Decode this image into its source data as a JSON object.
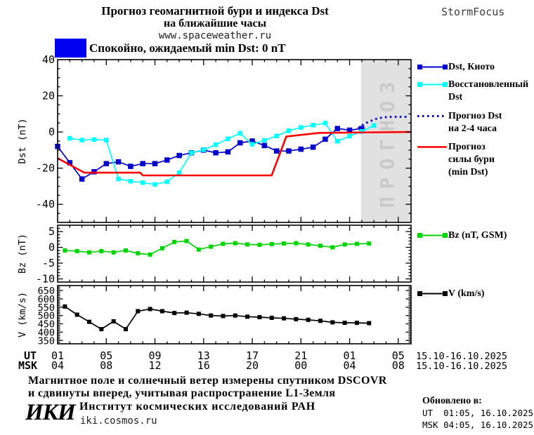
{
  "header": {
    "title_line1": "Прогноз геомагнитной бури и индекса Dst",
    "title_line2": "на ближайшие часы",
    "website": "www.spaceweather.ru",
    "brand": "StormFocus"
  },
  "status": {
    "text": "Спокойно, ожидаемый min Dst: 0 nT",
    "box_color": "#0000f0"
  },
  "chart_data": [
    {
      "type": "line",
      "panel": "dst",
      "ylabel": "Dst (nT)",
      "ylim": [
        -50,
        40
      ],
      "yticks": [
        40,
        20,
        0,
        -20,
        -40
      ],
      "y_minor_step": 5,
      "xlim_hours": [
        0,
        29.05
      ],
      "x_major_step_hours": 4,
      "x_start_ut": "01:00 15.10.2025",
      "forecast_region": {
        "start_hour": 24.94,
        "label": "ПРОГНОЗ",
        "fill": "#e1e1e1",
        "label_color": "#c9c9c9"
      },
      "series": [
        {
          "name": "Dst, Киото",
          "color": "#0000cd",
          "marker": true,
          "msize": 7.5,
          "x": [
            0,
            1,
            2,
            3,
            4,
            5,
            6,
            7,
            8,
            9,
            10,
            11,
            12,
            13,
            14,
            15,
            16,
            17,
            18,
            19,
            20,
            21,
            22,
            23,
            24,
            25
          ],
          "values": [
            -8,
            -17,
            -26,
            -22,
            -17.5,
            -16.5,
            -19,
            -17.5,
            -17.5,
            -15.5,
            -13,
            -11.5,
            -10,
            -11.5,
            -11,
            -6,
            -5,
            -7.5,
            -10.5,
            -10.5,
            -9.5,
            -8.4,
            -4,
            1.9,
            1,
            1.9
          ]
        },
        {
          "name": "Восстановленный Dst",
          "color": "#00ffff",
          "marker": true,
          "msize": 6.5,
          "x": [
            1,
            2,
            3,
            4,
            5,
            6,
            7,
            8,
            9,
            10,
            11,
            12,
            13,
            14,
            15,
            16,
            17,
            18,
            19,
            20,
            21,
            22,
            23,
            24,
            25,
            26
          ],
          "values": [
            -3.5,
            -4.5,
            -4.2,
            -4.5,
            -26,
            -27.2,
            -28,
            -29,
            -27.5,
            -22.5,
            -11.5,
            -9.8,
            -7,
            -3.8,
            -0.7,
            -6.8,
            -4.6,
            -2.2,
            0.7,
            2.5,
            3.8,
            4.9,
            -5.1,
            -2.3,
            0.3,
            3.6
          ]
        },
        {
          "name": "Прогноз Dst на 2-4 часа",
          "color": "#0000cd",
          "marker": false,
          "dotted": true,
          "width": 3,
          "x": [
            24.7,
            25.2,
            25.7,
            26.2,
            26.7,
            27.2,
            27.7,
            28.2,
            28.7
          ],
          "values": [
            2,
            4.5,
            6,
            7.3,
            8,
            8.3,
            8.4,
            8.4,
            8.4
          ]
        },
        {
          "name": "Прогноз силы бури (min Dst)",
          "color": "#ff0000",
          "marker": false,
          "width": 2.6,
          "x": [
            0,
            2.2,
            6.8,
            7.0,
            17.6,
            18.8,
            21.5,
            29.02
          ],
          "values": [
            -14.5,
            -22.5,
            -22.5,
            -24,
            -24,
            -2.5,
            -0.5,
            0
          ]
        }
      ]
    },
    {
      "type": "line",
      "panel": "bz",
      "ylabel": "Bz (nT)",
      "ylim": [
        -11,
        7
      ],
      "yticks": [
        5,
        0,
        -5,
        -10
      ],
      "y_minor_step": 1,
      "series": [
        {
          "name": "Bz (nT, GSM)",
          "color": "#00d500",
          "marker": true,
          "msize": 6,
          "x": [
            0.6,
            1.6,
            2.6,
            3.6,
            4.6,
            5.6,
            6.6,
            7.6,
            8.6,
            9.6,
            10.6,
            11.6,
            12.6,
            13.6,
            14.6,
            15.6,
            16.6,
            17.6,
            18.6,
            19.6,
            20.6,
            21.6,
            22.6,
            23.6,
            24.6,
            25.6
          ],
          "values": [
            -1,
            -1.2,
            -1.6,
            -1.2,
            -1.6,
            -1,
            -1.9,
            -2.3,
            -0.3,
            1.7,
            2,
            -0.7,
            0.2,
            1.1,
            1.3,
            0.9,
            0.8,
            1,
            1.2,
            1.3,
            0.9,
            0.5,
            0,
            0.9,
            1.1,
            1.2
          ]
        }
      ]
    },
    {
      "type": "line",
      "panel": "v",
      "ylabel": "V (km/s)",
      "ylim": [
        330,
        680
      ],
      "yticks": [
        650,
        600,
        550,
        500,
        450,
        400,
        350
      ],
      "y_minor_step": 10,
      "series": [
        {
          "name": "V (km/s)",
          "color": "#000000",
          "marker": true,
          "msize": 6,
          "x": [
            0.6,
            1.6,
            2.6,
            3.6,
            4.6,
            5.6,
            6.6,
            7.6,
            8.6,
            9.6,
            10.6,
            11.6,
            12.6,
            13.6,
            14.6,
            15.6,
            16.6,
            17.6,
            18.6,
            19.6,
            20.6,
            21.6,
            22.6,
            23.6,
            24.6,
            25.6
          ],
          "values": [
            554,
            505,
            462,
            418,
            465,
            418,
            526,
            539,
            526,
            515,
            517,
            510,
            500,
            497,
            500,
            493,
            490,
            486,
            483,
            478,
            474,
            468,
            459,
            456,
            456,
            454
          ]
        }
      ]
    }
  ],
  "xaxis": {
    "ut_label": "UT",
    "msk_label": "MSK",
    "ut_ticks": [
      "01",
      "05",
      "09",
      "13",
      "17",
      "21",
      "01",
      "05"
    ],
    "msk_ticks": [
      "04",
      "08",
      "12",
      "16",
      "20",
      "00",
      "04",
      "08"
    ],
    "ut_date": "15.10-16.10.2025",
    "msk_date": "15.10-16.10.2025"
  },
  "legend": {
    "dst_kyoto": "Dst, Киото",
    "recon_line1": "Восстановленный",
    "recon_line2": "Dst",
    "forecast_line1": "Прогноз Dst",
    "forecast_line2": "на 2-4 часа",
    "storm_line1": "Прогноз",
    "storm_line2": "силы бури",
    "storm_line3": "(min Dst)",
    "bz": "Bz (nT, GSM)",
    "v": "V (km/s)"
  },
  "footer": {
    "note_line1": "Магнитное поле и солнечный ветер измерены спутником DSCOVR",
    "note_line2": "и сдвинуты вперед, учитывая распространение L1-Земля",
    "logo": "ИКИ",
    "institute": "Институт космических исследований РАН",
    "site": "iki.cosmos.ru",
    "updated_label": "Обновлено в:",
    "updated_ut": "UT  01:05, 16.10.2025",
    "updated_msk": "MSK 04:05, 16.10.2025"
  }
}
